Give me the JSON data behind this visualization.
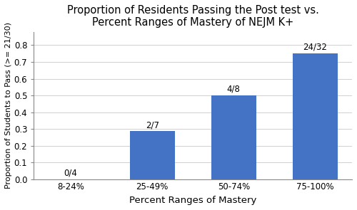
{
  "categories": [
    "8-24%",
    "25-49%",
    "50-74%",
    "75-100%"
  ],
  "values": [
    0.0,
    0.2857142857,
    0.5,
    0.75
  ],
  "labels": [
    "0/4",
    "2/7",
    "4/8",
    "24/32"
  ],
  "bar_color": "#4472C4",
  "title_line1": "Proportion of Residents Passing the Post test vs.",
  "title_line2": "Percent Ranges of Mastery of NEJM K+",
  "xlabel": "Percent Ranges of Mastery",
  "ylabel": "Proportion of Students to Pass (>= 21/30)",
  "ylim": [
    0,
    0.88
  ],
  "yticks": [
    0.0,
    0.1,
    0.2,
    0.3,
    0.4,
    0.5,
    0.6,
    0.7,
    0.8
  ],
  "title_fontsize": 10.5,
  "axis_label_fontsize": 9.5,
  "tick_fontsize": 8.5,
  "bar_label_fontsize": 8.5,
  "background_color": "#ffffff",
  "grid_color": "#d0d0d0",
  "bar_width": 0.55
}
